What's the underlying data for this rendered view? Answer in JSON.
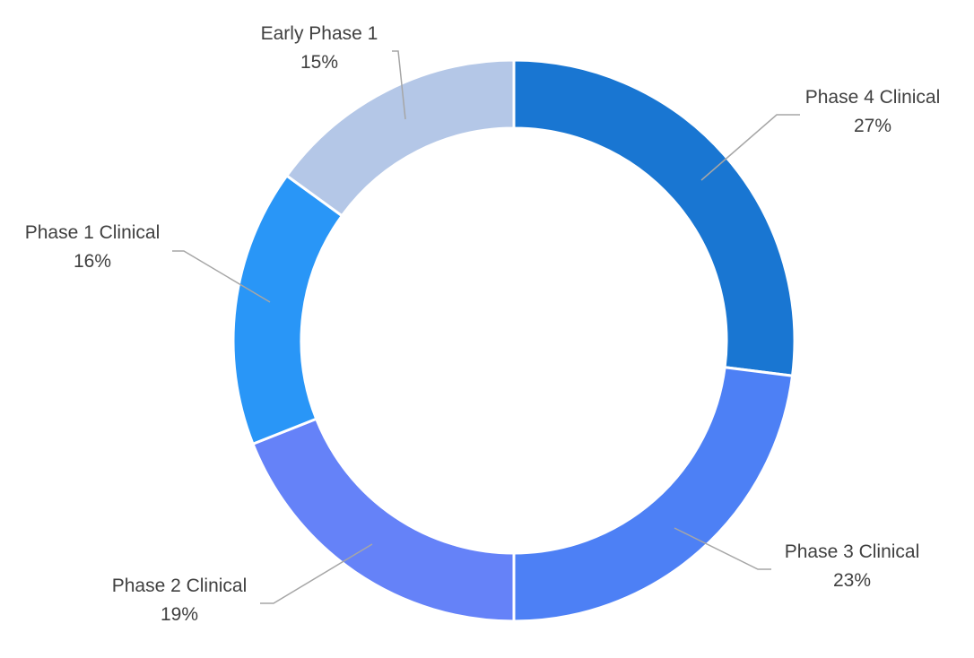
{
  "chart_data": {
    "type": "pie",
    "variant": "donut",
    "title": "",
    "legend": "none",
    "slices": [
      {
        "label": "Phase 4 Clinical",
        "value": 27,
        "value_label": "27%",
        "color": "#1976D2"
      },
      {
        "label": "Phase 3 Clinical",
        "value": 23,
        "value_label": "23%",
        "color": "#4D80F5"
      },
      {
        "label": "Phase 2 Clinical",
        "value": 19,
        "value_label": "19%",
        "color": "#6582F8"
      },
      {
        "label": "Phase 1 Clinical",
        "value": 16,
        "value_label": "16%",
        "color": "#2996F7"
      },
      {
        "label": "Early Phase 1",
        "value": 15,
        "value_label": "15%",
        "color": "#B4C7E7"
      }
    ]
  }
}
